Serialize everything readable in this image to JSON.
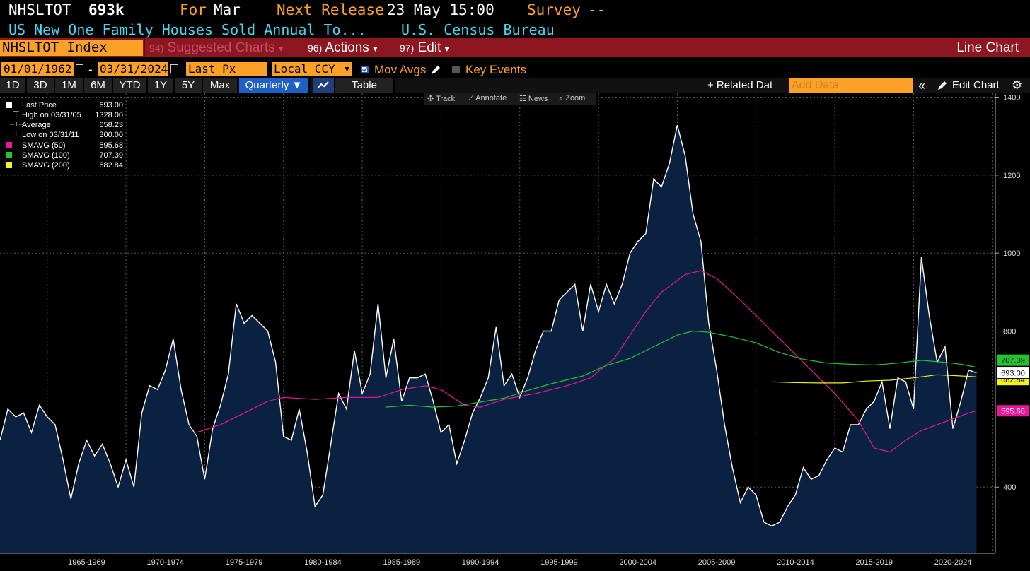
{
  "header": {
    "ticker": "NHSLTOT",
    "value": "693k",
    "for_label": "For",
    "for_value": "Mar",
    "next_release_label": "Next Release",
    "next_release_value": "23 May 15:00",
    "survey_label": "Survey",
    "survey_value": "--",
    "description": "US New One Family Houses Sold Annual To...",
    "source": "U.S. Census Bureau"
  },
  "menubar": {
    "security": "NHSLTOT Index",
    "items": [
      {
        "num": "94)",
        "label": "Suggested Charts",
        "arrow": "▾"
      },
      {
        "num": "96)",
        "label": "Actions",
        "arrow": "▾"
      },
      {
        "num": "97)",
        "label": "Edit",
        "arrow": "▾"
      }
    ],
    "chart_type": "Line Chart"
  },
  "controls": {
    "start_date": "01/01/1962",
    "dash": "-",
    "end_date": "03/31/2024",
    "field": "Last Px",
    "currency": "Local CCY",
    "mov_avgs": "Mov Avgs",
    "key_events": "Key Events"
  },
  "tabs": {
    "periods": [
      "1D",
      "3D",
      "1M",
      "6M",
      "YTD",
      "1Y",
      "5Y",
      "Max"
    ],
    "frequency": "Quarterly ▼",
    "table": "Table",
    "related": "+ Related Dat",
    "add_data_placeholder": "Add Data",
    "collapse": "«",
    "edit_chart": "Edit Chart"
  },
  "tools": [
    "Track",
    "Annotate",
    "News",
    "Zoom"
  ],
  "legend": [
    {
      "label": "Last Price",
      "value": "693.00",
      "color": "#ffffff",
      "marker": "square"
    },
    {
      "label": "High on 03/31/05",
      "value": "1328.00",
      "color": "#aaaaaa",
      "marker": "high"
    },
    {
      "label": "Average",
      "value": "658.23",
      "color": "#aaaaaa",
      "marker": "avg"
    },
    {
      "label": "Low on 03/31/11",
      "value": "300.00",
      "color": "#aaaaaa",
      "marker": "low"
    },
    {
      "label": "SMAVG (50)",
      "value": "595.68",
      "color": "#e8189a",
      "marker": "square"
    },
    {
      "label": "SMAVG (100)",
      "value": "707.39",
      "color": "#22c230",
      "marker": "square"
    },
    {
      "label": "SMAVG (200)",
      "value": "682.84",
      "color": "#f2f21c",
      "marker": "square"
    }
  ],
  "colors": {
    "price": "#ffffff",
    "area": "#0b2142",
    "sma50": "#e8189a",
    "sma100": "#22c230",
    "sma200": "#f2f21c",
    "header_orange": "#fca128",
    "header_cyan": "#45d6f0",
    "menubar": "#8e1620"
  },
  "chart_data": {
    "type": "line",
    "y_ticks": [
      "1400",
      "1200",
      "1000",
      "800",
      "400"
    ],
    "ylim": [
      230,
      1410
    ],
    "x_labels": [
      "1965-1969",
      "1970-1974",
      "1975-1979",
      "1980-1984",
      "1985-1989",
      "1990-1994",
      "1995-1999",
      "2000-2004",
      "2005-2009",
      "2010-2014",
      "2015-2019",
      "2020-2024"
    ],
    "x_range": [
      1962,
      2024.25
    ],
    "price_tags": {
      "last": "693.00",
      "sma50": "595.68",
      "sma100": "707.39",
      "sma200": "682.84"
    },
    "series": [
      {
        "name": "Last Price",
        "points": [
          [
            1962.0,
            520
          ],
          [
            1962.5,
            600
          ],
          [
            1963.0,
            580
          ],
          [
            1963.5,
            590
          ],
          [
            1964.0,
            540
          ],
          [
            1964.5,
            610
          ],
          [
            1965.0,
            580
          ],
          [
            1965.5,
            560
          ],
          [
            1966.0,
            470
          ],
          [
            1966.5,
            370
          ],
          [
            1967.0,
            460
          ],
          [
            1967.5,
            520
          ],
          [
            1968.0,
            480
          ],
          [
            1968.5,
            510
          ],
          [
            1969.0,
            460
          ],
          [
            1969.5,
            400
          ],
          [
            1970.0,
            470
          ],
          [
            1970.5,
            400
          ],
          [
            1971.0,
            590
          ],
          [
            1971.5,
            660
          ],
          [
            1972.0,
            650
          ],
          [
            1972.5,
            700
          ],
          [
            1973.0,
            780
          ],
          [
            1973.5,
            650
          ],
          [
            1974.0,
            560
          ],
          [
            1974.5,
            530
          ],
          [
            1975.0,
            420
          ],
          [
            1975.5,
            550
          ],
          [
            1976.0,
            610
          ],
          [
            1976.5,
            690
          ],
          [
            1977.0,
            870
          ],
          [
            1977.5,
            820
          ],
          [
            1978.0,
            840
          ],
          [
            1978.5,
            820
          ],
          [
            1979.0,
            800
          ],
          [
            1979.5,
            720
          ],
          [
            1980.0,
            530
          ],
          [
            1980.5,
            520
          ],
          [
            1981.0,
            600
          ],
          [
            1981.5,
            490
          ],
          [
            1982.0,
            350
          ],
          [
            1982.5,
            380
          ],
          [
            1983.0,
            510
          ],
          [
            1983.5,
            640
          ],
          [
            1984.0,
            600
          ],
          [
            1984.5,
            750
          ],
          [
            1985.0,
            640
          ],
          [
            1985.5,
            690
          ],
          [
            1986.0,
            870
          ],
          [
            1986.5,
            680
          ],
          [
            1987.0,
            780
          ],
          [
            1987.5,
            620
          ],
          [
            1988.0,
            680
          ],
          [
            1988.5,
            680
          ],
          [
            1989.0,
            690
          ],
          [
            1989.5,
            620
          ],
          [
            1990.0,
            540
          ],
          [
            1990.5,
            560
          ],
          [
            1991.0,
            460
          ],
          [
            1991.5,
            520
          ],
          [
            1992.0,
            590
          ],
          [
            1992.5,
            630
          ],
          [
            1993.0,
            680
          ],
          [
            1993.5,
            810
          ],
          [
            1994.0,
            660
          ],
          [
            1994.5,
            690
          ],
          [
            1995.0,
            630
          ],
          [
            1995.5,
            680
          ],
          [
            1996.0,
            750
          ],
          [
            1996.5,
            800
          ],
          [
            1997.0,
            800
          ],
          [
            1997.5,
            880
          ],
          [
            1998.0,
            900
          ],
          [
            1998.5,
            920
          ],
          [
            1999.0,
            800
          ],
          [
            1999.5,
            920
          ],
          [
            2000.0,
            850
          ],
          [
            2000.5,
            920
          ],
          [
            2001.0,
            870
          ],
          [
            2001.5,
            920
          ],
          [
            2002.0,
            1000
          ],
          [
            2002.5,
            1030
          ],
          [
            2003.0,
            1050
          ],
          [
            2003.5,
            1190
          ],
          [
            2004.0,
            1170
          ],
          [
            2004.5,
            1230
          ],
          [
            2005.0,
            1328
          ],
          [
            2005.5,
            1250
          ],
          [
            2006.0,
            1100
          ],
          [
            2006.5,
            1030
          ],
          [
            2007.0,
            820
          ],
          [
            2007.5,
            700
          ],
          [
            2008.0,
            560
          ],
          [
            2008.5,
            450
          ],
          [
            2009.0,
            360
          ],
          [
            2009.5,
            400
          ],
          [
            2010.0,
            380
          ],
          [
            2010.5,
            310
          ],
          [
            2011.0,
            300
          ],
          [
            2011.5,
            310
          ],
          [
            2012.0,
            350
          ],
          [
            2012.5,
            380
          ],
          [
            2013.0,
            450
          ],
          [
            2013.5,
            420
          ],
          [
            2014.0,
            430
          ],
          [
            2014.5,
            470
          ],
          [
            2015.0,
            500
          ],
          [
            2015.5,
            490
          ],
          [
            2016.0,
            560
          ],
          [
            2016.5,
            560
          ],
          [
            2017.0,
            600
          ],
          [
            2017.5,
            620
          ],
          [
            2018.0,
            670
          ],
          [
            2018.5,
            550
          ],
          [
            2019.0,
            680
          ],
          [
            2019.5,
            670
          ],
          [
            2020.0,
            600
          ],
          [
            2020.5,
            990
          ],
          [
            2021.0,
            840
          ],
          [
            2021.5,
            720
          ],
          [
            2022.0,
            760
          ],
          [
            2022.5,
            550
          ],
          [
            2023.0,
            620
          ],
          [
            2023.5,
            700
          ],
          [
            2024.0,
            693
          ]
        ]
      },
      {
        "name": "SMAVG (50)",
        "points": [
          [
            1974.5,
            540
          ],
          [
            1976.0,
            560
          ],
          [
            1977.5,
            590
          ],
          [
            1979.0,
            620
          ],
          [
            1980.0,
            630
          ],
          [
            1982.0,
            625
          ],
          [
            1984.0,
            630
          ],
          [
            1986.0,
            630
          ],
          [
            1987.5,
            650
          ],
          [
            1989.0,
            660
          ],
          [
            1990.0,
            650
          ],
          [
            1991.5,
            610
          ],
          [
            1992.5,
            605
          ],
          [
            1994.0,
            625
          ],
          [
            1996.0,
            640
          ],
          [
            1998.0,
            660
          ],
          [
            1999.5,
            680
          ],
          [
            2001.0,
            730
          ],
          [
            2002.0,
            790
          ],
          [
            2003.0,
            850
          ],
          [
            2004.0,
            900
          ],
          [
            2005.5,
            945
          ],
          [
            2006.5,
            955
          ],
          [
            2007.5,
            935
          ],
          [
            2009.0,
            880
          ],
          [
            2010.5,
            820
          ],
          [
            2012.0,
            760
          ],
          [
            2013.5,
            700
          ],
          [
            2015.0,
            640
          ],
          [
            2016.5,
            570
          ],
          [
            2017.5,
            500
          ],
          [
            2018.5,
            490
          ],
          [
            2019.5,
            520
          ],
          [
            2020.5,
            545
          ],
          [
            2021.5,
            560
          ],
          [
            2022.5,
            575
          ],
          [
            2023.5,
            590
          ],
          [
            2024.0,
            595.68
          ]
        ]
      },
      {
        "name": "SMAVG (100)",
        "points": [
          [
            1986.5,
            605
          ],
          [
            1988.0,
            610
          ],
          [
            1989.5,
            605
          ],
          [
            1991.0,
            608
          ],
          [
            1992.5,
            618
          ],
          [
            1994.0,
            628
          ],
          [
            1995.5,
            648
          ],
          [
            1997.0,
            665
          ],
          [
            1999.0,
            685
          ],
          [
            2000.5,
            712
          ],
          [
            2002.0,
            730
          ],
          [
            2003.5,
            760
          ],
          [
            2005.0,
            790
          ],
          [
            2006.0,
            800
          ],
          [
            2007.0,
            797
          ],
          [
            2008.5,
            785
          ],
          [
            2010.0,
            770
          ],
          [
            2011.5,
            745
          ],
          [
            2013.0,
            728
          ],
          [
            2014.5,
            718
          ],
          [
            2016.0,
            715
          ],
          [
            2017.5,
            713
          ],
          [
            2019.0,
            718
          ],
          [
            2020.5,
            725
          ],
          [
            2022.0,
            720
          ],
          [
            2023.0,
            715
          ],
          [
            2024.0,
            707.39
          ]
        ]
      },
      {
        "name": "SMAVG (200)",
        "points": [
          [
            2011.0,
            670
          ],
          [
            2012.5,
            668
          ],
          [
            2014.0,
            667
          ],
          [
            2015.5,
            667
          ],
          [
            2017.0,
            672
          ],
          [
            2018.5,
            674
          ],
          [
            2020.0,
            680
          ],
          [
            2021.5,
            688
          ],
          [
            2022.5,
            686
          ],
          [
            2024.0,
            682.84
          ]
        ]
      }
    ]
  }
}
